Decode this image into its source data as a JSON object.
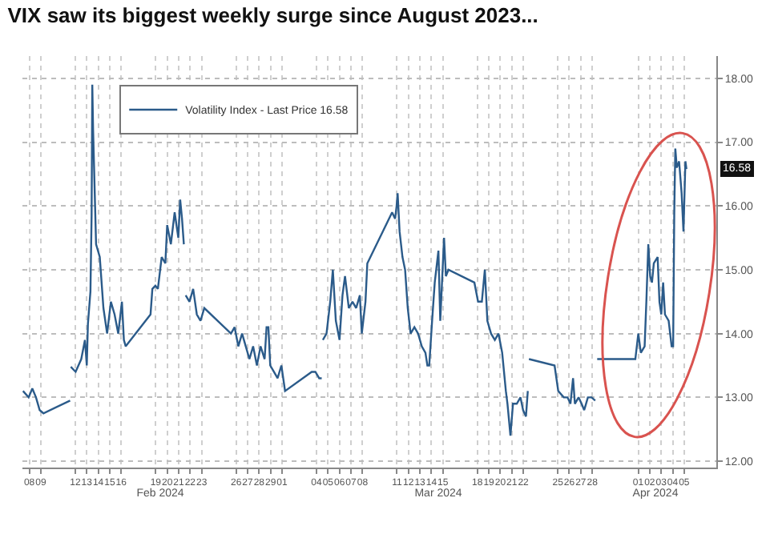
{
  "chart_data": {
    "type": "line",
    "title": "VIX saw its biggest weekly surge since August 2023...",
    "legend": "top left",
    "grid": true,
    "marker": "none",
    "line_style": "solid",
    "xlim": [
      "2024-02-07T21:36",
      "2024-04-08T07:12"
    ],
    "xticks": [
      {
        "value": "2024-02-08T12:00",
        "label": "08"
      },
      {
        "value": "2024-02-09T12:00",
        "label": "09"
      },
      {
        "value": "2024-02-12T12:00",
        "label": "12"
      },
      {
        "value": "2024-02-13T12:00",
        "label": "13"
      },
      {
        "value": "2024-02-14T12:00",
        "label": "14"
      },
      {
        "value": "2024-02-15T12:00",
        "label": "15"
      },
      {
        "value": "2024-02-16T12:00",
        "label": "16"
      },
      {
        "value": "2024-02-19T12:00",
        "label": "19"
      },
      {
        "value": "2024-02-20T12:00",
        "label": "20"
      },
      {
        "value": "2024-02-21T12:00",
        "label": "21"
      },
      {
        "value": "2024-02-22T12:00",
        "label": "22"
      },
      {
        "value": "2024-02-23T12:00",
        "label": "23"
      },
      {
        "value": "2024-02-26T12:00",
        "label": "26"
      },
      {
        "value": "2024-02-27T12:00",
        "label": "27"
      },
      {
        "value": "2024-02-28T12:00",
        "label": "28"
      },
      {
        "value": "2024-02-29T12:00",
        "label": "29"
      },
      {
        "value": "2024-03-01T12:00",
        "label": "01"
      },
      {
        "value": "2024-03-04T12:00",
        "label": "04"
      },
      {
        "value": "2024-03-05T12:00",
        "label": "05"
      },
      {
        "value": "2024-03-06T12:00",
        "label": "06"
      },
      {
        "value": "2024-03-07T12:00",
        "label": "07"
      },
      {
        "value": "2024-03-08T12:00",
        "label": "08"
      },
      {
        "value": "2024-03-11T12:00",
        "label": "11"
      },
      {
        "value": "2024-03-12T12:00",
        "label": "12"
      },
      {
        "value": "2024-03-13T12:00",
        "label": "13"
      },
      {
        "value": "2024-03-14T12:00",
        "label": "14"
      },
      {
        "value": "2024-03-15T12:00",
        "label": "15"
      },
      {
        "value": "2024-03-18T12:00",
        "label": "18"
      },
      {
        "value": "2024-03-19T12:00",
        "label": "19"
      },
      {
        "value": "2024-03-20T12:00",
        "label": "20"
      },
      {
        "value": "2024-03-21T12:00",
        "label": "21"
      },
      {
        "value": "2024-03-22T12:00",
        "label": "22"
      },
      {
        "value": "2024-03-25T12:00",
        "label": "25"
      },
      {
        "value": "2024-03-26T12:00",
        "label": "26"
      },
      {
        "value": "2024-03-27T12:00",
        "label": "27"
      },
      {
        "value": "2024-03-28T12:00",
        "label": "28"
      },
      {
        "value": "2024-04-01T12:00",
        "label": "01"
      },
      {
        "value": "2024-04-02T12:00",
        "label": "02"
      },
      {
        "value": "2024-04-03T12:00",
        "label": "03"
      },
      {
        "value": "2024-04-04T12:00",
        "label": "04"
      },
      {
        "value": "2024-04-05T12:00",
        "label": "05"
      }
    ],
    "x2lim": [
      "2024-02-07T21:36",
      "2024-04-08T07:12"
    ],
    "x2ticks": [
      {
        "value": "2024-02-19T21:36",
        "label": "Feb 2024"
      },
      {
        "value": "2024-03-15T02:24",
        "label": "Mar 2024"
      },
      {
        "value": "2024-04-03T00:00",
        "label": "Apr 2024"
      }
    ],
    "ylim": [
      11.9,
      18.35
    ],
    "yticks": [
      {
        "value": 12,
        "label": "12.00"
      },
      {
        "value": 13,
        "label": "13.00"
      },
      {
        "value": 14,
        "label": "14.00"
      },
      {
        "value": 15,
        "label": "15.00"
      },
      {
        "value": 16,
        "label": "16.00"
      },
      {
        "value": 17,
        "label": "17.00"
      },
      {
        "value": 18,
        "label": "18.00"
      }
    ],
    "annotations": [
      {
        "text": "16.58",
        "y": 16.58
      }
    ],
    "series": [
      {
        "name": "Volatility Index - Last Price 16.58",
        "color": "#2b5b8a",
        "x": [
          "2024-02-07T22:48",
          "2024-02-08T10:34",
          "2024-02-08T18:14",
          "2024-02-09T01:55",
          "2024-02-09T09:36",
          "2024-02-09T17:31",
          "2024-02-12T01:12",
          "2024-02-12T01:55",
          "2024-02-12T02:38",
          "2024-02-12T12:43",
          "2024-02-13T00:29",
          "2024-02-13T08:10",
          "2024-02-13T12:00",
          "2024-02-13T14:24",
          "2024-02-13T19:41",
          "2024-02-13T22:05",
          "2024-02-13T23:31",
          "2024-02-14T01:12",
          "2024-02-14T07:26",
          "2024-02-14T15:07",
          "2024-02-14T18:58",
          "2024-02-14T22:48",
          "2024-02-15T06:29",
          "2024-02-15T14:24",
          "2024-02-15T22:05",
          "2024-02-16T05:46",
          "2024-02-16T13:26",
          "2024-02-16T17:31",
          "2024-02-16T21:22",
          "2024-02-19T01:12",
          "2024-02-19T05:02",
          "2024-02-19T11:17",
          "2024-02-19T16:34",
          "2024-02-20T00:29",
          "2024-02-20T08:10",
          "2024-02-20T12:00",
          "2024-02-20T19:41",
          "2024-02-21T03:36",
          "2024-02-21T11:17",
          "2024-02-21T15:07",
          "2024-02-21T18:58",
          "2024-02-21T22:48",
          "2024-02-22T00:00",
          "2024-02-22T02:38",
          "2024-02-22T10:34",
          "2024-02-22T18:14",
          "2024-02-23T01:55",
          "2024-02-23T09:36",
          "2024-02-23T17:31",
          "2024-02-26T01:12",
          "2024-02-26T08:53",
          "2024-02-26T16:34",
          "2024-02-27T00:29",
          "2024-02-27T08:10",
          "2024-02-27T15:50",
          "2024-02-27T23:31",
          "2024-02-28T07:26",
          "2024-02-28T15:07",
          "2024-02-28T23:31",
          "2024-02-29T03:36",
          "2024-02-29T07:26",
          "2024-02-29T11:17",
          "2024-02-29T18:58",
          "2024-03-01T02:38",
          "2024-03-01T10:34",
          "2024-03-01T18:14",
          "2024-03-04T01:55",
          "2024-03-04T09:36",
          "2024-03-04T17:31",
          "2024-03-04T22:48",
          "2024-03-05T00:00",
          "2024-03-05T01:12",
          "2024-03-05T08:53",
          "2024-03-05T16:34",
          "2024-03-05T22:05",
          "2024-03-06T04:19",
          "2024-03-06T12:00",
          "2024-03-06T18:14",
          "2024-03-06T23:31",
          "2024-03-07T07:26",
          "2024-03-07T15:07",
          "2024-03-07T22:48",
          "2024-03-08T06:29",
          "2024-03-08T10:34",
          "2024-03-08T18:14",
          "2024-03-08T22:05",
          "2024-03-11T01:55",
          "2024-03-11T08:10",
          "2024-03-11T11:17",
          "2024-03-11T13:26",
          "2024-03-11T17:31",
          "2024-03-11T23:31",
          "2024-03-12T05:02",
          "2024-03-12T10:34",
          "2024-03-12T16:34",
          "2024-03-13T00:29",
          "2024-03-13T08:10",
          "2024-03-13T15:50",
          "2024-03-13T23:31",
          "2024-03-14T03:36",
          "2024-03-14T07:26",
          "2024-03-14T13:26",
          "2024-03-14T18:58",
          "2024-03-15T02:38",
          "2024-03-15T06:29",
          "2024-03-15T14:24",
          "2024-03-15T18:14",
          "2024-03-15T23:31",
          "2024-03-18T05:46",
          "2024-03-18T13:26",
          "2024-03-18T21:22",
          "2024-03-19T03:36",
          "2024-03-19T08:53",
          "2024-03-19T16:34",
          "2024-03-20T00:29",
          "2024-03-20T08:10",
          "2024-03-20T15:50",
          "2024-03-20T23:31",
          "2024-03-21T02:53",
          "2024-03-21T09:07",
          "2024-03-21T14:24",
          "2024-03-21T22:19",
          "2024-03-22T06:00",
          "2024-03-22T11:31",
          "2024-03-22T17:31",
          "2024-03-22T21:22",
          "2024-03-22T22:48",
          "2024-03-22T23:46",
          "2024-03-25T05:17",
          "2024-03-25T12:58",
          "2024-03-26T00:29",
          "2024-03-26T08:24",
          "2024-03-26T14:24",
          "2024-03-26T19:55",
          "2024-03-26T23:46",
          "2024-03-27T07:26",
          "2024-03-27T13:41",
          "2024-03-27T19:12",
          "2024-03-28T02:53",
          "2024-03-28T10:34",
          "2024-03-28T18:14",
          "2024-03-28T19:12",
          "2024-03-28T22:19",
          "2024-04-01T06:00",
          "2024-04-01T12:14",
          "2024-04-01T17:31",
          "2024-04-02T01:26",
          "2024-04-02T05:02",
          "2024-04-02T09:07",
          "2024-04-02T12:58",
          "2024-04-02T16:48",
          "2024-04-02T20:38",
          "2024-04-03T04:34",
          "2024-04-03T08:24",
          "2024-04-03T12:14",
          "2024-04-03T16:05",
          "2024-04-03T19:55",
          "2024-04-04T03:36",
          "2024-04-04T09:50",
          "2024-04-04T12:58",
          "2024-04-04T15:22",
          "2024-04-04T17:31",
          "2024-04-04T20:38",
          "2024-04-05T01:26",
          "2024-04-05T06:43",
          "2024-04-05T10:34",
          "2024-04-05T14:38",
          "2024-04-05T16:48"
        ],
        "values": [
          13.1,
          13.0,
          13.14,
          13.0,
          12.8,
          12.75,
          12.95,
          null,
          13.48,
          13.4,
          13.6,
          13.9,
          13.5,
          14.15,
          14.66,
          15.85,
          17.9,
          17.2,
          15.4,
          15.2,
          14.8,
          14.4,
          14.0,
          14.5,
          14.3,
          14.0,
          14.5,
          13.9,
          13.8,
          14.3,
          14.7,
          14.75,
          14.7,
          15.2,
          15.1,
          15.7,
          15.4,
          15.9,
          15.5,
          16.1,
          15.8,
          15.4,
          null,
          14.6,
          14.5,
          14.7,
          14.3,
          14.2,
          14.4,
          14.0,
          14.1,
          13.8,
          14.0,
          13.8,
          13.6,
          13.8,
          13.5,
          13.8,
          13.6,
          14.1,
          14.1,
          13.5,
          13.4,
          13.3,
          13.5,
          13.1,
          13.4,
          13.4,
          13.3,
          13.3,
          null,
          13.9,
          14.0,
          14.5,
          15.0,
          14.2,
          13.9,
          14.6,
          14.9,
          14.4,
          14.5,
          14.4,
          14.6,
          14.0,
          14.5,
          15.1,
          15.9,
          15.8,
          16.0,
          16.2,
          15.6,
          15.2,
          15.0,
          14.4,
          14.0,
          14.1,
          14.0,
          13.8,
          13.7,
          13.5,
          13.5,
          14.2,
          14.8,
          15.3,
          14.2,
          15.5,
          14.9,
          15.0,
          14.8,
          14.5,
          14.5,
          15.0,
          14.2,
          14.0,
          13.9,
          14.0,
          13.7,
          13.1,
          12.9,
          12.4,
          12.9,
          12.9,
          13.0,
          12.8,
          12.7,
          13.1,
          null,
          13.6,
          13.5,
          13.1,
          13.0,
          13.0,
          12.9,
          13.3,
          12.9,
          13.0,
          12.9,
          12.8,
          13.0,
          13.0,
          12.95,
          null,
          13.6,
          13.6,
          14.0,
          13.7,
          13.8,
          14.5,
          15.4,
          14.9,
          14.8,
          15.1,
          15.2,
          14.5,
          14.3,
          14.8,
          14.3,
          14.2,
          13.8,
          13.8,
          15.9,
          16.9,
          16.6,
          16.7,
          16.2,
          15.6,
          16.7,
          16.58
        ]
      }
    ]
  }
}
